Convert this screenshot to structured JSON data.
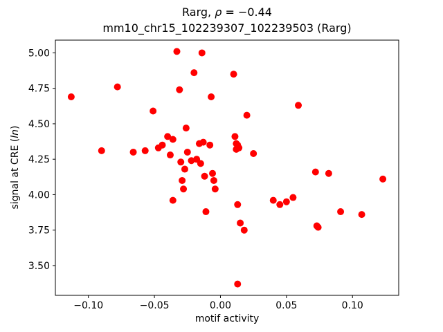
{
  "title": {
    "part1": "Rarg, ",
    "rho": "ρ",
    "part2": " = −0.44",
    "line2": "mm10_chr15_102239307_102239503 (Rarg)"
  },
  "xlabel": "motif activity",
  "ylabel": {
    "part1": "signal at CRE (",
    "italic": "ln",
    "part2": ")"
  },
  "chart_data": {
    "type": "scatter",
    "title": "Rarg, ρ = −0.44\nmm10_chr15_102239307_102239503 (Rarg)",
    "xlabel": "motif activity",
    "ylabel": "signal at CRE (ln)",
    "xlim": [
      -0.125,
      0.135
    ],
    "ylim": [
      3.29,
      5.09
    ],
    "grid": false,
    "legend": "none",
    "marker": "circle",
    "marker_color": "#ff0000",
    "xticks": {
      "values": [
        -0.1,
        -0.05,
        0.0,
        0.05,
        0.1
      ],
      "labels": [
        "−0.10",
        "−0.05",
        "0.00",
        "0.05",
        "0.10"
      ]
    },
    "yticks": {
      "values": [
        3.5,
        3.75,
        4.0,
        4.25,
        4.5,
        4.75,
        5.0
      ],
      "labels": [
        "3.50",
        "3.75",
        "4.00",
        "4.25",
        "4.50",
        "4.75",
        "5.00"
      ]
    },
    "points": [
      [
        -0.113,
        4.69
      ],
      [
        -0.09,
        4.31
      ],
      [
        -0.078,
        4.76
      ],
      [
        -0.066,
        4.3
      ],
      [
        -0.057,
        4.31
      ],
      [
        -0.051,
        4.59
      ],
      [
        -0.047,
        4.33
      ],
      [
        -0.044,
        4.35
      ],
      [
        -0.04,
        4.41
      ],
      [
        -0.038,
        4.28
      ],
      [
        -0.036,
        4.39
      ],
      [
        -0.036,
        3.96
      ],
      [
        -0.033,
        5.01
      ],
      [
        -0.031,
        4.74
      ],
      [
        -0.03,
        4.23
      ],
      [
        -0.029,
        4.1
      ],
      [
        -0.028,
        4.04
      ],
      [
        -0.027,
        4.18
      ],
      [
        -0.026,
        4.47
      ],
      [
        -0.025,
        4.3
      ],
      [
        -0.022,
        4.24
      ],
      [
        -0.02,
        4.86
      ],
      [
        -0.018,
        4.25
      ],
      [
        -0.016,
        4.36
      ],
      [
        -0.015,
        4.22
      ],
      [
        -0.014,
        5.0
      ],
      [
        -0.013,
        4.37
      ],
      [
        -0.012,
        4.13
      ],
      [
        -0.011,
        3.88
      ],
      [
        -0.008,
        4.35
      ],
      [
        -0.007,
        4.69
      ],
      [
        -0.006,
        4.15
      ],
      [
        -0.005,
        4.1
      ],
      [
        -0.004,
        4.04
      ],
      [
        0.01,
        4.85
      ],
      [
        0.011,
        4.41
      ],
      [
        0.012,
        4.36
      ],
      [
        0.012,
        4.32
      ],
      [
        0.013,
        4.35
      ],
      [
        0.014,
        4.33
      ],
      [
        0.013,
        3.93
      ],
      [
        0.013,
        3.37
      ],
      [
        0.015,
        3.8
      ],
      [
        0.018,
        3.75
      ],
      [
        0.02,
        4.56
      ],
      [
        0.025,
        4.29
      ],
      [
        0.04,
        3.96
      ],
      [
        0.045,
        3.93
      ],
      [
        0.05,
        3.95
      ],
      [
        0.055,
        3.98
      ],
      [
        0.059,
        4.63
      ],
      [
        0.072,
        4.16
      ],
      [
        0.073,
        3.78
      ],
      [
        0.074,
        3.77
      ],
      [
        0.082,
        4.15
      ],
      [
        0.091,
        3.88
      ],
      [
        0.107,
        3.86
      ],
      [
        0.123,
        4.11
      ]
    ]
  }
}
